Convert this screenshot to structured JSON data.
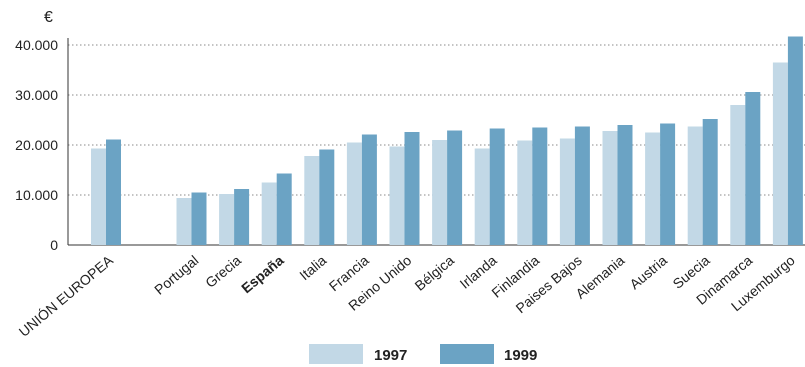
{
  "chart_data": {
    "type": "bar",
    "unit": "€",
    "categories": [
      "UNIÓN EUROPEA",
      "Portugal",
      "Grecia",
      "España",
      "Italia",
      "Francia",
      "Reino Unido",
      "Bélgica",
      "Irlanda",
      "Finlandia",
      "Paises Bajos",
      "Alemania",
      "Austria",
      "Suecia",
      "Dinamarca",
      "Luxemburgo"
    ],
    "bold_categories": [
      "España"
    ],
    "series": [
      {
        "name": "1997",
        "color": "#c2d8e6",
        "values": [
          19300,
          9400,
          10200,
          12500,
          17800,
          20500,
          19700,
          21000,
          19300,
          20900,
          21300,
          22800,
          22500,
          23700,
          28000,
          36500
        ]
      },
      {
        "name": "1999",
        "color": "#6ba3c4",
        "values": [
          21100,
          10500,
          11200,
          14300,
          19100,
          22100,
          22600,
          22900,
          23300,
          23500,
          23700,
          24000,
          24300,
          25200,
          30600,
          41700
        ]
      }
    ],
    "y_ticks": [
      0,
      10000,
      20000,
      30000,
      40000
    ],
    "y_tick_labels": [
      "0",
      "10.000",
      "20.000",
      "30.000",
      "40.000"
    ],
    "ylim": [
      0,
      42000
    ],
    "grid": "horizontal dotted",
    "legend": "bottom-center"
  }
}
